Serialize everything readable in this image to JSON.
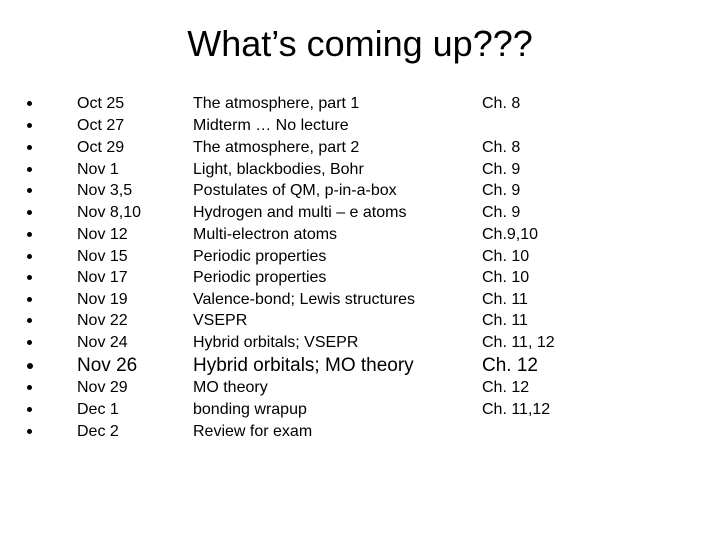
{
  "header": {
    "title": "What’s coming up???"
  },
  "schedule": [
    {
      "date": "Oct 25",
      "topic": "The atmosphere, part 1",
      "chapter": "Ch. 8"
    },
    {
      "date": "Oct 27",
      "topic": "Midterm … No lecture"
    },
    {
      "date": "Oct 29",
      "topic": "The atmosphere, part 2",
      "chapter": "Ch. 8"
    },
    {
      "date": "Nov 1",
      "topic": "Light, blackbodies, Bohr",
      "chapter": "Ch. 9"
    },
    {
      "date": "Nov 3,5",
      "topic": "Postulates of QM, p-in-a-box",
      "chapter": "Ch. 9"
    },
    {
      "date": "Nov 8,10",
      "topic": "Hydrogen and multi – e atoms",
      "chapter": "Ch. 9"
    },
    {
      "date": "Nov 12",
      "topic": "Multi-electron atoms",
      "chapter": "Ch.9,10"
    },
    {
      "date": "Nov 15",
      "topic": "Periodic properties",
      "chapter": "Ch. 10"
    },
    {
      "date": "Nov 17",
      "topic": "Periodic properties",
      "chapter": "Ch. 10"
    },
    {
      "date": "Nov 19",
      "topic": "Valence-bond; Lewis structures",
      "chapter": "Ch. 11"
    },
    {
      "date": "Nov 22",
      "topic": "VSEPR",
      "chapter": "Ch. 11"
    },
    {
      "date": "Nov 24",
      "topic": "Hybrid orbitals; VSEPR",
      "chapter": "Ch. 11, 12"
    },
    {
      "date": "Nov 26",
      "topic": "Hybrid orbitals; MO theory",
      "chapter": "Ch. 12"
    },
    {
      "date": "Nov 29",
      "topic": "MO theory",
      "chapter": "Ch. 12"
    },
    {
      "date": "Dec 1",
      "topic": "bonding wrapup",
      "chapter": "Ch. 11,12"
    },
    {
      "date": "Dec 2",
      "topic": "Review for exam"
    }
  ]
}
